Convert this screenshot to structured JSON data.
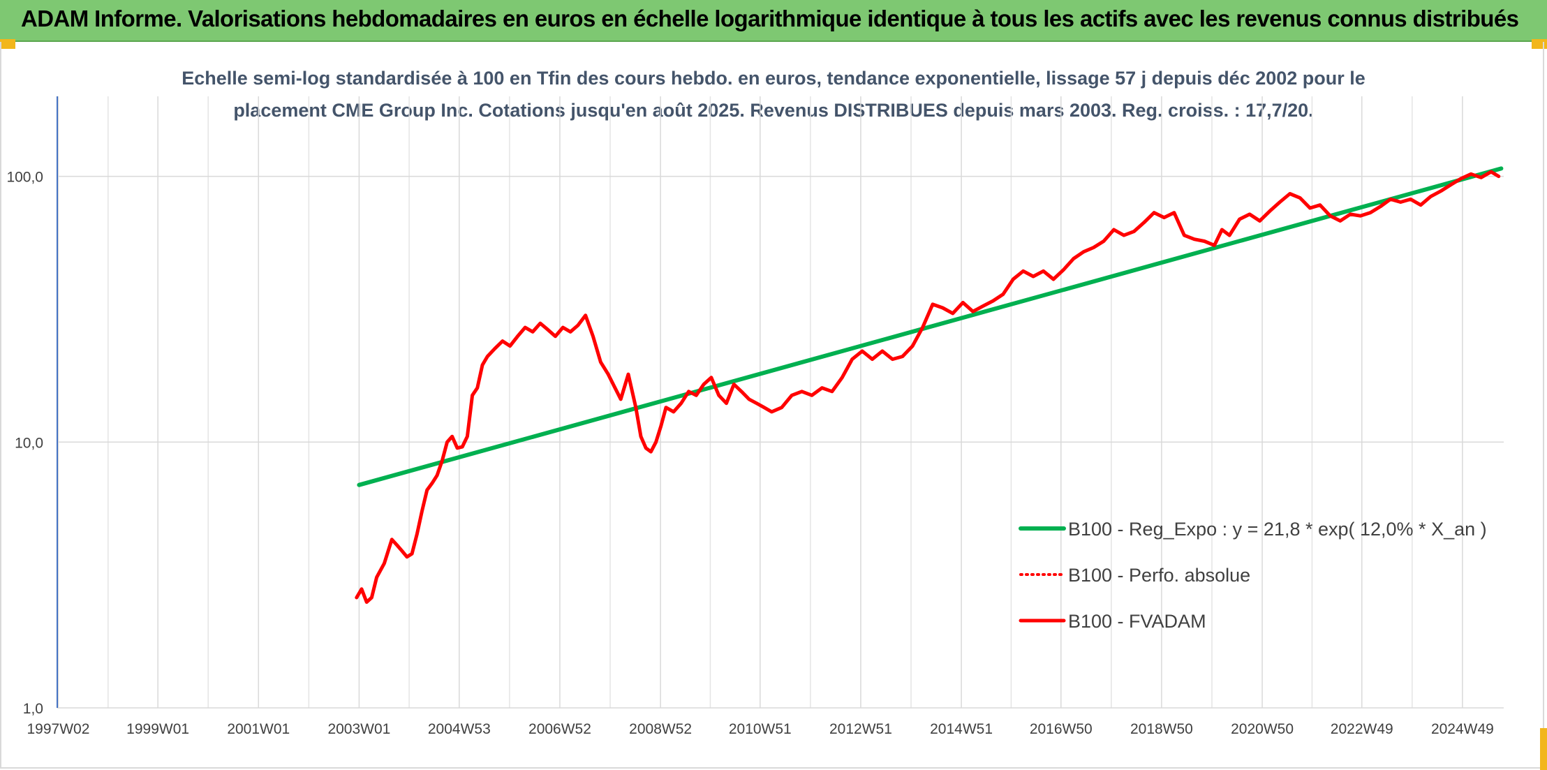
{
  "header": {
    "title": "ADAM Informe. Valorisations hebdomadaires en euros en échelle logarithmique identique à tous les actifs avec les revenus connus distribués"
  },
  "chart_data": {
    "type": "line",
    "title": "",
    "subtitle_line1": "Echelle semi-log standardisée à 100 en Tfin des cours hebdo. en euros, tendance exponentielle, lissage 57 j depuis déc 2002 pour le",
    "subtitle_line2": "placement CME Group Inc. Cotations jusqu'en août 2025. Revenus DISTRIBUES depuis mars 2003. Reg. croiss. : 17,7/20.",
    "xlabel": "",
    "ylabel": "",
    "y_scale": "log",
    "ylim": [
      1,
      200
    ],
    "y_ticks": [
      1,
      10,
      100
    ],
    "y_tick_labels": [
      "1,0",
      "10,0",
      "100,0"
    ],
    "xlim": [
      1997.0,
      2025.75
    ],
    "x_ticks": [
      1997.02,
      1999.0,
      2001.0,
      2003.0,
      2004.99,
      2006.99,
      2008.99,
      2010.97,
      2012.97,
      2014.97,
      2016.95,
      2018.95,
      2020.95,
      2022.93,
      2024.93
    ],
    "x_tick_labels": [
      "1997W02",
      "1999W01",
      "2001W01",
      "2003W01",
      "2004W53",
      "2006W52",
      "2008W52",
      "2010W51",
      "2012W51",
      "2014W51",
      "2016W50",
      "2018W50",
      "2020W50",
      "2022W49",
      "2024W49"
    ],
    "grid": "vertical",
    "legend_position": "bottom-right",
    "series": [
      {
        "name": "B100 - Reg_Expo : y = 21,8 * exp( 12,0% *  X_an )",
        "color": "#00b050",
        "style": "solid",
        "x": [
          2003.0,
          2025.7
        ],
        "y": [
          6.9,
          107
        ]
      },
      {
        "name": "B100 - Perfo. absolue",
        "color": "#ff0000",
        "style": "dotted",
        "x": [],
        "y": []
      },
      {
        "name": "B100 - FVADAM",
        "color": "#ff0000",
        "style": "solid",
        "x": [
          2002.95,
          2003.05,
          2003.15,
          2003.25,
          2003.35,
          2003.5,
          2003.65,
          2003.75,
          2003.85,
          2003.95,
          2004.05,
          2004.15,
          2004.25,
          2004.35,
          2004.45,
          2004.55,
          2004.65,
          2004.75,
          2004.85,
          2004.95,
          2005.05,
          2005.15,
          2005.25,
          2005.35,
          2005.45,
          2005.55,
          2005.7,
          2005.85,
          2006.0,
          2006.15,
          2006.3,
          2006.45,
          2006.6,
          2006.75,
          2006.9,
          2007.05,
          2007.2,
          2007.35,
          2007.5,
          2007.65,
          2007.8,
          2007.95,
          2008.05,
          2008.2,
          2008.35,
          2008.5,
          2008.6,
          2008.7,
          2008.8,
          2008.9,
          2009.0,
          2009.1,
          2009.25,
          2009.4,
          2009.55,
          2009.7,
          2009.85,
          2010.0,
          2010.15,
          2010.3,
          2010.45,
          2010.6,
          2010.75,
          2010.9,
          2011.05,
          2011.2,
          2011.4,
          2011.6,
          2011.8,
          2012.0,
          2012.2,
          2012.4,
          2012.6,
          2012.8,
          2013.0,
          2013.2,
          2013.4,
          2013.6,
          2013.8,
          2014.0,
          2014.2,
          2014.4,
          2014.6,
          2014.8,
          2015.0,
          2015.2,
          2015.4,
          2015.6,
          2015.8,
          2016.0,
          2016.2,
          2016.4,
          2016.6,
          2016.8,
          2017.0,
          2017.2,
          2017.4,
          2017.6,
          2017.8,
          2018.0,
          2018.2,
          2018.4,
          2018.6,
          2018.8,
          2019.0,
          2019.2,
          2019.4,
          2019.6,
          2019.8,
          2020.0,
          2020.15,
          2020.3,
          2020.5,
          2020.7,
          2020.9,
          2021.1,
          2021.3,
          2021.5,
          2021.7,
          2021.9,
          2022.1,
          2022.3,
          2022.5,
          2022.7,
          2022.9,
          2023.1,
          2023.3,
          2023.5,
          2023.7,
          2023.9,
          2024.1,
          2024.3,
          2024.5,
          2024.7,
          2024.9,
          2025.1,
          2025.3,
          2025.5,
          2025.65
        ],
        "y": [
          2.6,
          2.8,
          2.5,
          2.6,
          3.1,
          3.5,
          4.3,
          4.1,
          3.9,
          3.7,
          3.8,
          4.5,
          5.5,
          6.6,
          7.0,
          7.5,
          8.5,
          10.0,
          10.5,
          9.5,
          9.6,
          10.5,
          15.0,
          16.0,
          19.5,
          21.0,
          22.5,
          24.0,
          23.0,
          25.0,
          27.0,
          26.0,
          28.0,
          26.5,
          25.0,
          27.0,
          26.0,
          27.5,
          30.0,
          25.0,
          20.0,
          18.0,
          16.5,
          14.5,
          18.0,
          13.5,
          10.5,
          9.5,
          9.2,
          10.0,
          11.5,
          13.5,
          13.0,
          14.0,
          15.5,
          15.0,
          16.5,
          17.5,
          15.0,
          14.0,
          16.5,
          15.5,
          14.5,
          14.0,
          13.5,
          13.0,
          13.5,
          15.0,
          15.5,
          15.0,
          16.0,
          15.5,
          17.5,
          20.5,
          22.0,
          20.5,
          22.0,
          20.5,
          21.0,
          23.0,
          27.0,
          33.0,
          32.0,
          30.5,
          33.5,
          31.0,
          32.5,
          34.0,
          36.0,
          41.0,
          44.0,
          42.0,
          44.0,
          41.0,
          44.5,
          49.0,
          52.0,
          54.0,
          57.0,
          63.0,
          60.0,
          62.0,
          67.0,
          73.0,
          70.0,
          73.0,
          60.0,
          58.0,
          57.0,
          55.0,
          63.0,
          60.0,
          69.0,
          72.0,
          68.0,
          74.0,
          80.0,
          86.0,
          83.0,
          76.0,
          78.0,
          71.0,
          68.0,
          72.0,
          71.0,
          73.0,
          77.0,
          82.0,
          80.0,
          82.0,
          78.0,
          84.0,
          88.0,
          93.0,
          98.0,
          102.0,
          99.0,
          104.0,
          100.0
        ]
      }
    ]
  }
}
